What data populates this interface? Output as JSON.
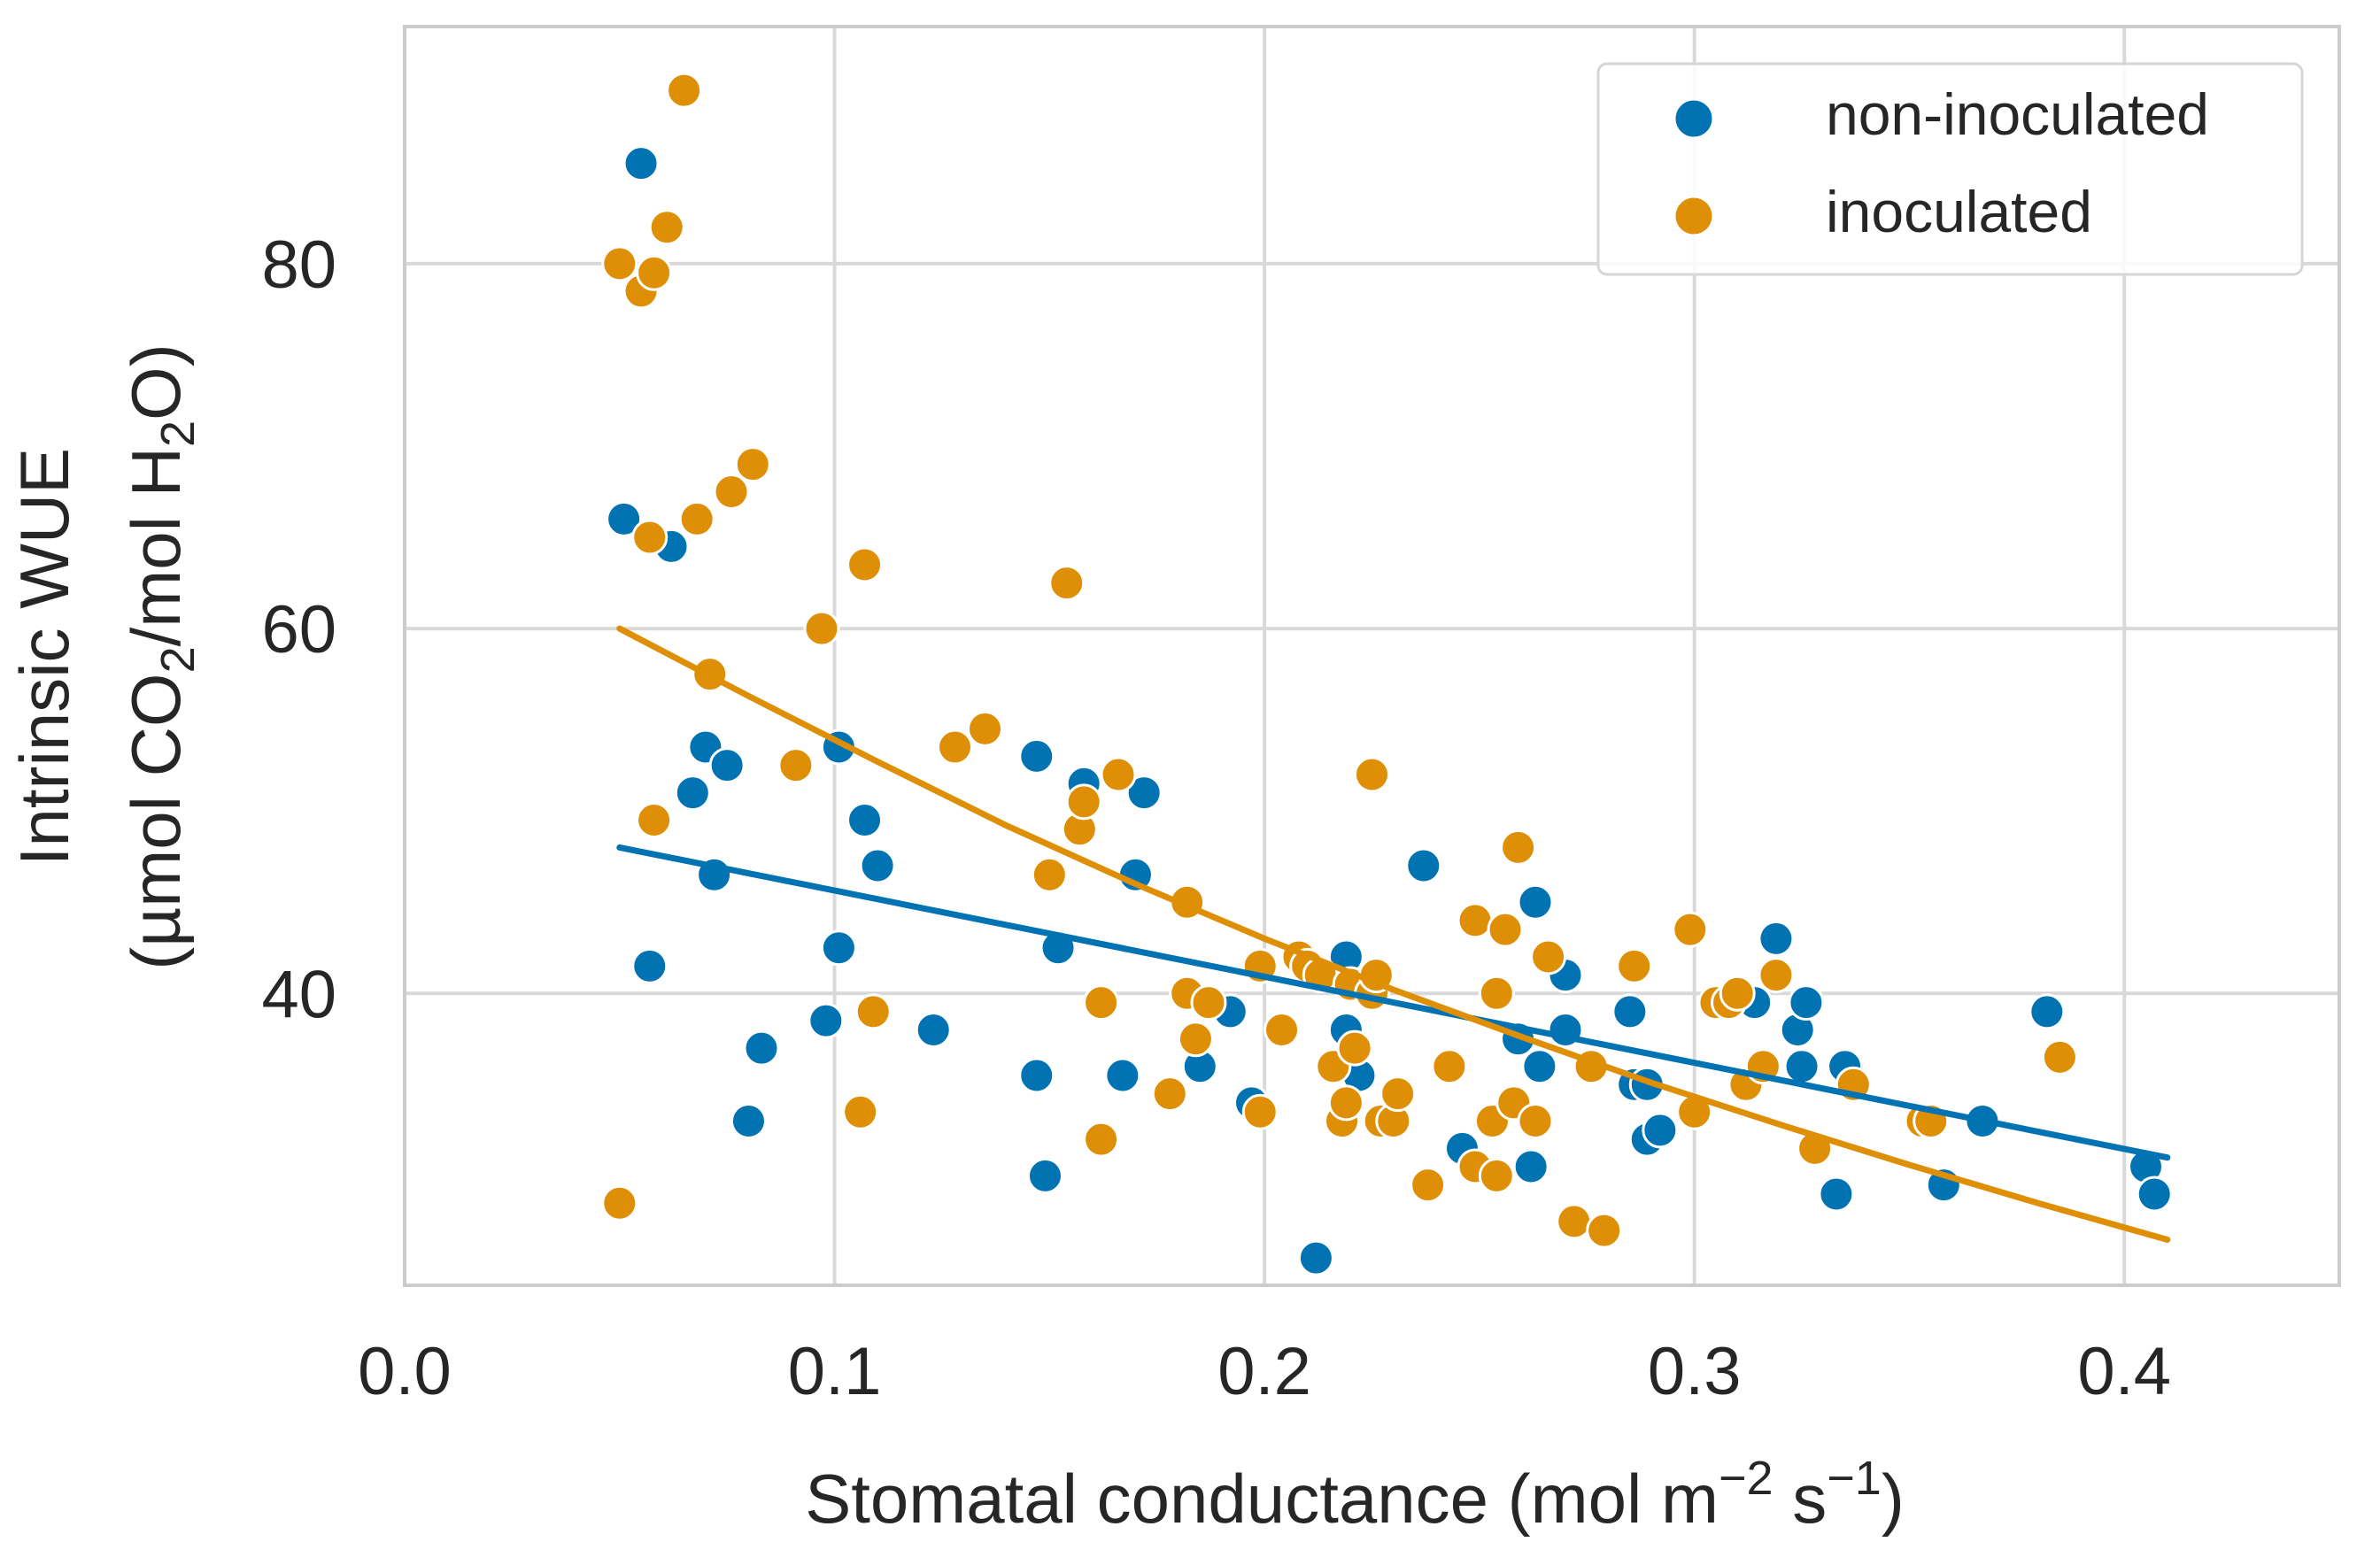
{
  "chart_data": {
    "type": "scatter",
    "title": "",
    "xlabel": {
      "main": "Stomatal conductance (mol m",
      "exp1": "−2",
      "mid": " s",
      "exp2": "−1",
      "end": ")"
    },
    "ylabel": {
      "line1": "Intrinsic WUE",
      "line2_a": "(µmol CO",
      "sub1": "2",
      "line2_b": "/mol H",
      "sub2": "2",
      "line2_c": "O)"
    },
    "xlim": [
      0.0,
      0.45
    ],
    "ylim": [
      24,
      93
    ],
    "xticks": [
      0.0,
      0.1,
      0.2,
      0.3,
      0.4
    ],
    "xtick_labels": [
      "0.0",
      "0.1",
      "0.2",
      "0.3",
      "0.4"
    ],
    "yticks": [
      40,
      60,
      80
    ],
    "ytick_labels": [
      "40",
      "60",
      "80"
    ],
    "grid": true,
    "legend_position": "top-right",
    "series": [
      {
        "name": "non-inoculated",
        "color": "#0173b2",
        "points": [
          [
            0.051,
            66
          ],
          [
            0.055,
            85.5
          ],
          [
            0.057,
            41.5
          ],
          [
            0.062,
            64.5
          ],
          [
            0.067,
            51
          ],
          [
            0.07,
            53.5
          ],
          [
            0.072,
            46.5
          ],
          [
            0.075,
            52.5
          ],
          [
            0.08,
            33
          ],
          [
            0.083,
            37
          ],
          [
            0.098,
            38.5
          ],
          [
            0.101,
            53.5
          ],
          [
            0.101,
            42.5
          ],
          [
            0.107,
            49.5
          ],
          [
            0.11,
            47
          ],
          [
            0.123,
            38
          ],
          [
            0.147,
            35.5
          ],
          [
            0.147,
            53
          ],
          [
            0.149,
            30
          ],
          [
            0.152,
            42.5
          ],
          [
            0.158,
            51.5
          ],
          [
            0.167,
            35.5
          ],
          [
            0.17,
            46.5
          ],
          [
            0.172,
            51
          ],
          [
            0.185,
            36
          ],
          [
            0.192,
            39
          ],
          [
            0.197,
            34
          ],
          [
            0.212,
            25.5
          ],
          [
            0.219,
            42
          ],
          [
            0.219,
            38
          ],
          [
            0.222,
            35.5
          ],
          [
            0.237,
            47
          ],
          [
            0.246,
            31.5
          ],
          [
            0.259,
            37.5
          ],
          [
            0.262,
            30.5
          ],
          [
            0.263,
            45
          ],
          [
            0.264,
            36
          ],
          [
            0.27,
            38
          ],
          [
            0.27,
            41
          ],
          [
            0.285,
            39
          ],
          [
            0.286,
            35
          ],
          [
            0.289,
            35
          ],
          [
            0.289,
            32
          ],
          [
            0.292,
            32.5
          ],
          [
            0.314,
            39.5
          ],
          [
            0.319,
            43
          ],
          [
            0.324,
            38
          ],
          [
            0.325,
            36
          ],
          [
            0.326,
            39.5
          ],
          [
            0.333,
            29
          ],
          [
            0.335,
            36
          ],
          [
            0.358,
            29.5
          ],
          [
            0.367,
            33
          ],
          [
            0.382,
            39
          ],
          [
            0.405,
            30.5
          ],
          [
            0.407,
            29
          ]
        ],
        "trend": {
          "x": [
            0.05,
            0.41
          ],
          "y": [
            48,
            31
          ]
        }
      },
      {
        "name": "inoculated",
        "color": "#de8f05",
        "points": [
          [
            0.05,
            80
          ],
          [
            0.05,
            28.5
          ],
          [
            0.055,
            78.5
          ],
          [
            0.057,
            65
          ],
          [
            0.058,
            49.5
          ],
          [
            0.058,
            79.5
          ],
          [
            0.061,
            82
          ],
          [
            0.065,
            89.5
          ],
          [
            0.068,
            66
          ],
          [
            0.071,
            57.5
          ],
          [
            0.076,
            67.5
          ],
          [
            0.081,
            69
          ],
          [
            0.091,
            52.5
          ],
          [
            0.097,
            60
          ],
          [
            0.106,
            33.5
          ],
          [
            0.107,
            63.5
          ],
          [
            0.109,
            39
          ],
          [
            0.128,
            53.5
          ],
          [
            0.135,
            54.5
          ],
          [
            0.15,
            46.5
          ],
          [
            0.154,
            62.5
          ],
          [
            0.157,
            49
          ],
          [
            0.158,
            50.5
          ],
          [
            0.162,
            39.5
          ],
          [
            0.162,
            32
          ],
          [
            0.166,
            52
          ],
          [
            0.178,
            34.5
          ],
          [
            0.182,
            45
          ],
          [
            0.182,
            40
          ],
          [
            0.184,
            37.5
          ],
          [
            0.187,
            39.5
          ],
          [
            0.199,
            33.5
          ],
          [
            0.199,
            41.5
          ],
          [
            0.204,
            38
          ],
          [
            0.208,
            42
          ],
          [
            0.21,
            41.5
          ],
          [
            0.213,
            41
          ],
          [
            0.216,
            36
          ],
          [
            0.218,
            33
          ],
          [
            0.219,
            34
          ],
          [
            0.22,
            40.5
          ],
          [
            0.221,
            37
          ],
          [
            0.225,
            52
          ],
          [
            0.225,
            40
          ],
          [
            0.226,
            41
          ],
          [
            0.227,
            33
          ],
          [
            0.23,
            33
          ],
          [
            0.231,
            34.5
          ],
          [
            0.238,
            29.5
          ],
          [
            0.243,
            36
          ],
          [
            0.249,
            44
          ],
          [
            0.249,
            30.5
          ],
          [
            0.253,
            33
          ],
          [
            0.254,
            30
          ],
          [
            0.254,
            40
          ],
          [
            0.256,
            43.5
          ],
          [
            0.258,
            34
          ],
          [
            0.259,
            48
          ],
          [
            0.263,
            33
          ],
          [
            0.266,
            42
          ],
          [
            0.272,
            27.5
          ],
          [
            0.276,
            36
          ],
          [
            0.279,
            27
          ],
          [
            0.286,
            41.5
          ],
          [
            0.299,
            43.5
          ],
          [
            0.3,
            33.5
          ],
          [
            0.305,
            39.5
          ],
          [
            0.308,
            39.5
          ],
          [
            0.31,
            40
          ],
          [
            0.312,
            35
          ],
          [
            0.316,
            36
          ],
          [
            0.319,
            41
          ],
          [
            0.328,
            31.5
          ],
          [
            0.337,
            35
          ],
          [
            0.353,
            33
          ],
          [
            0.355,
            33
          ],
          [
            0.385,
            36.5
          ]
        ],
        "trend": {
          "x": [
            0.05,
            0.08,
            0.11,
            0.14,
            0.17,
            0.2,
            0.23,
            0.26,
            0.29,
            0.32,
            0.35,
            0.38,
            0.41
          ],
          "y": [
            60,
            56.3,
            52.7,
            49.2,
            46,
            43,
            40.2,
            37.6,
            35.1,
            32.8,
            30.6,
            28.5,
            26.5
          ]
        }
      }
    ]
  }
}
